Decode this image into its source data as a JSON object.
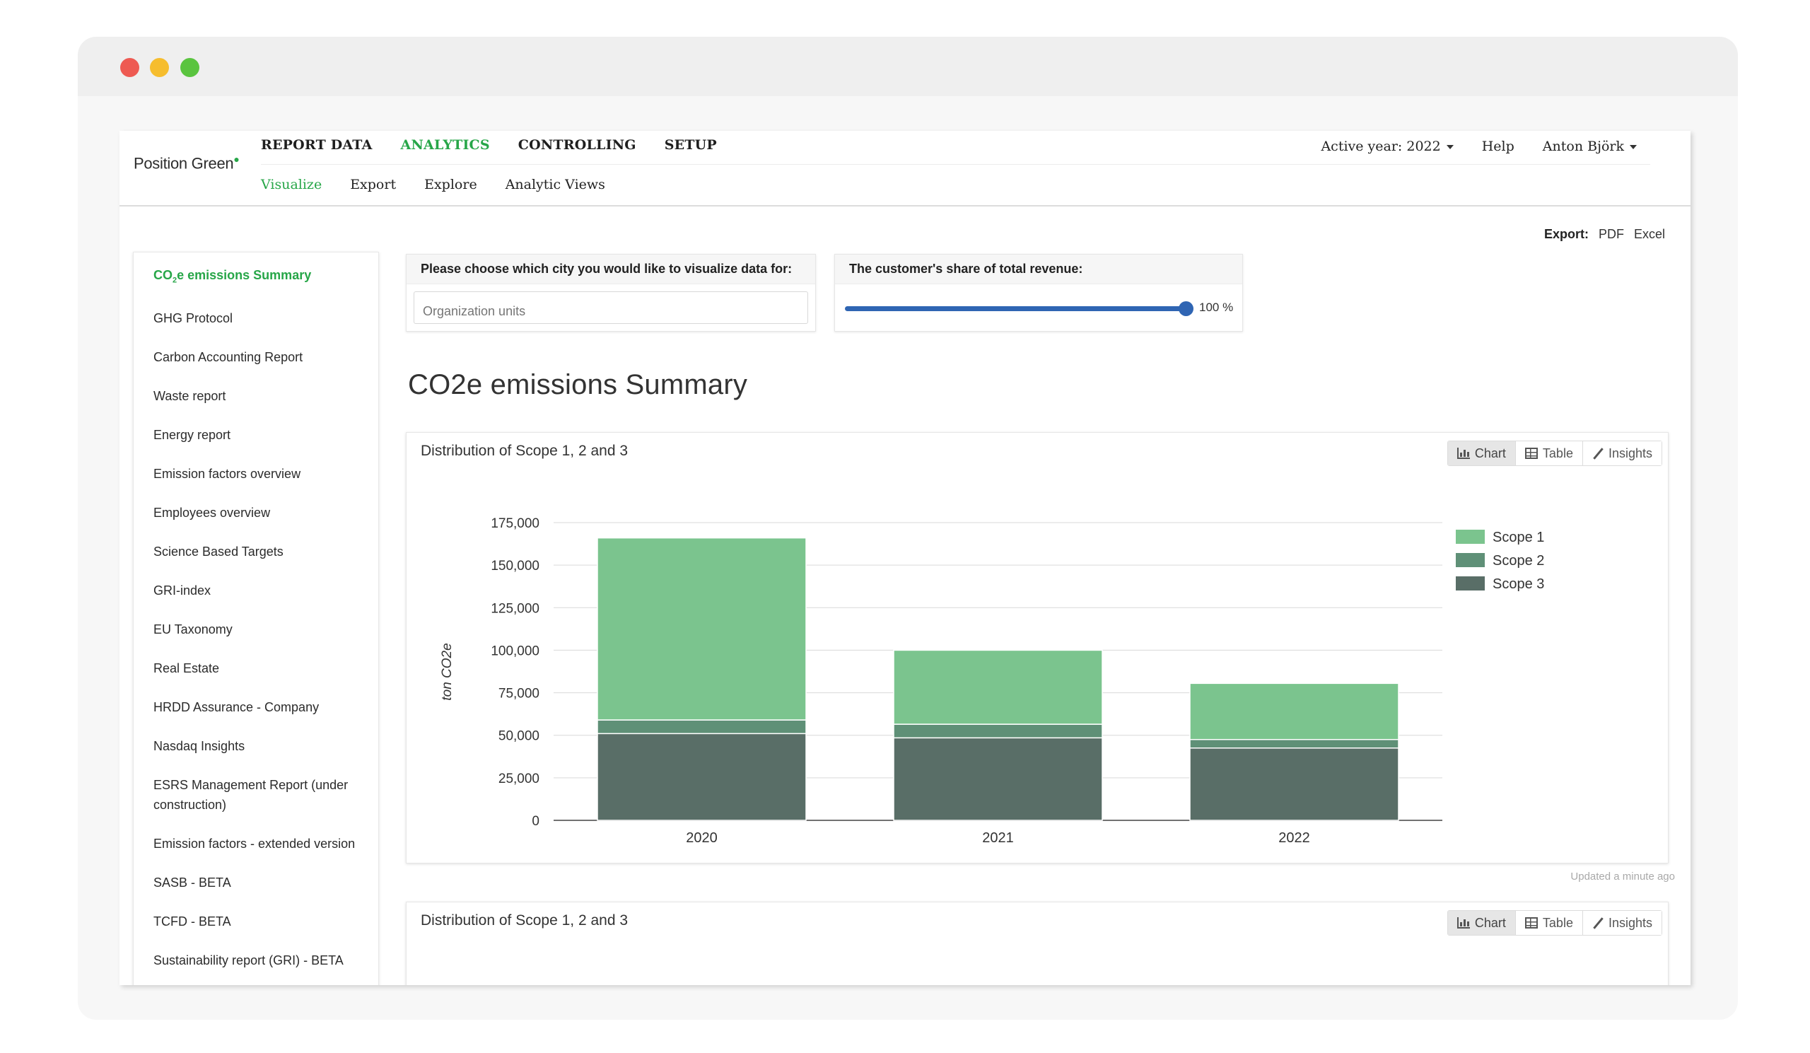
{
  "app": {
    "logo": "Position Green"
  },
  "nav": {
    "main": [
      "REPORT DATA",
      "ANALYTICS",
      "CONTROLLING",
      "SETUP"
    ],
    "main_active": "ANALYTICS",
    "sub": [
      "Visualize",
      "Export",
      "Explore",
      "Analytic Views"
    ],
    "sub_active": "Visualize",
    "active_year": "Active year: 2022",
    "help": "Help",
    "user": "Anton Björk"
  },
  "export": {
    "label": "Export:",
    "pdf": "PDF",
    "excel": "Excel"
  },
  "sidebar": {
    "active_item": {
      "prefix": "CO",
      "subscript": "2",
      "suffix": "e emissions Summary"
    },
    "items": [
      "GHG Protocol",
      "Carbon Accounting Report",
      "Waste report",
      "Energy report",
      "Emission factors overview",
      "Employees overview",
      "Science Based Targets",
      "GRI-index",
      "EU Taxonomy",
      "Real Estate",
      "HRDD Assurance - Company",
      "Nasdaq Insights",
      "ESRS Management Report (under construction)",
      "Emission factors - extended version",
      "SASB - BETA",
      "TCFD - BETA",
      "Sustainability report (GRI) - BETA"
    ]
  },
  "filters": {
    "city_label": "Please choose which city you would like to visualize data for:",
    "city_placeholder": "Organization units",
    "revenue_label": "The customer's share of total revenue:",
    "revenue_value": 100,
    "revenue_text": "100 %"
  },
  "page_title": "CO2e emissions Summary",
  "panels": [
    {
      "title": "Distribution of Scope 1, 2 and 3",
      "buttons": [
        "Chart",
        "Table",
        "Insights"
      ],
      "active_button": "Chart",
      "updated": "Updated a minute ago"
    },
    {
      "title": "Distribution of Scope 1, 2 and 3",
      "buttons": [
        "Chart",
        "Table",
        "Insights"
      ],
      "active_button": "Chart"
    }
  ],
  "colors": {
    "brand_green": "#27a648",
    "slider_blue": "#2f65b3",
    "scope1": "#7bc48e",
    "scope2": "#5f9077",
    "scope3": "#596e67"
  },
  "chart_data": {
    "type": "bar",
    "stacked": true,
    "title": "",
    "xlabel": "",
    "ylabel": "ton CO2e",
    "categories": [
      "2020",
      "2021",
      "2022"
    ],
    "series": [
      {
        "name": "Scope 3",
        "values": [
          51000,
          48500,
          42500
        ]
      },
      {
        "name": "Scope 2",
        "values": [
          8000,
          8000,
          5000
        ]
      },
      {
        "name": "Scope 1",
        "values": [
          107000,
          43500,
          33000
        ]
      }
    ],
    "legend_order": [
      "Scope 1",
      "Scope 2",
      "Scope 3"
    ],
    "yticks": [
      0,
      25000,
      50000,
      75000,
      100000,
      125000,
      150000,
      175000
    ],
    "ytick_labels": [
      "0",
      "25,000",
      "50,000",
      "75,000",
      "100,000",
      "125,000",
      "150,000",
      "175,000"
    ],
    "ylim": [
      0,
      175000
    ],
    "grid": true,
    "legend_position": "right"
  }
}
